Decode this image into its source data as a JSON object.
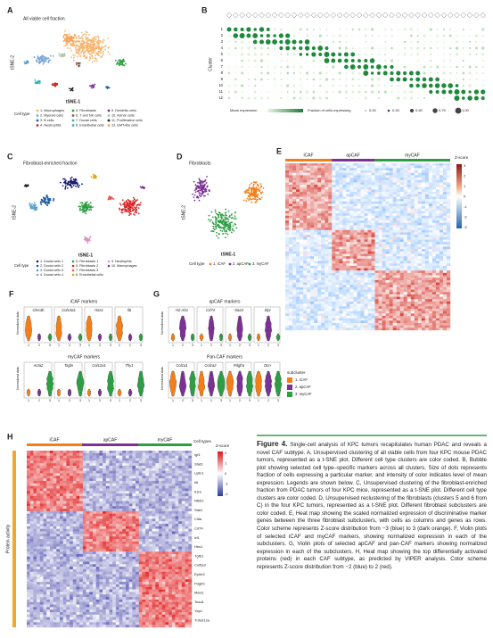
{
  "panels": {
    "A": {
      "letter": "A",
      "title": "All viable cell fraction",
      "x_label": "tSNE-1",
      "y_label": "tSNE-2",
      "legend_title": "Cell type",
      "legend": [
        "1. Macrophages",
        "2. Myeloid cells",
        "3. B cells",
        "4. Neutrophils",
        "5. Fibroblasts",
        "6. T and NK cells",
        "7. Ductal cells",
        "8. Endothelial cells",
        "9. Dendritic cells",
        "10. Acinar cells",
        "11. Proliferative cells",
        "12. EMT-like cells"
      ]
    },
    "B": {
      "letter": "B",
      "y_label": "Cluster",
      "rows": [
        "1",
        "2",
        "3",
        "4",
        "5",
        "6",
        "7",
        "8",
        "9",
        "10",
        "11",
        "12"
      ],
      "legend_color": "Mean expression",
      "legend_size": "Fraction of cells expressing",
      "size_labels": [
        "0.00",
        "0.25",
        "0.50",
        "0.75",
        "1.00"
      ]
    },
    "C": {
      "letter": "C",
      "title": "Fibroblast-enriched fraction",
      "x_label": "tSNE-1",
      "y_label": "tSNE-2",
      "legend_title": "Cell type",
      "legend": [
        "1. Ductal cells 1",
        "2. Ductal cells 2",
        "3. Ductal cells 3",
        "4. Ductal cells 4",
        "5. Fibroblasts 1",
        "6. Fibroblasts 2",
        "7. Fibroblasts 3",
        "8. Endothelial cells",
        "9. Neutrophils",
        "10. Macrophages"
      ]
    },
    "D": {
      "letter": "D",
      "title": "Fibroblasts",
      "x_label": "tSNE-1",
      "y_label": "tSNE-2",
      "legend_title": "Cell type",
      "legend": [
        "1. iCAF",
        "2. apCAF",
        "3. myCAF"
      ]
    },
    "E": {
      "letter": "E",
      "groups": [
        "iCAF",
        "apCAF",
        "myCAF"
      ],
      "scale_title": "Z-score",
      "scale_labels": [
        "3",
        "2",
        "1",
        "0",
        "-1",
        "-2",
        "-3"
      ]
    },
    "F": {
      "letter": "F",
      "y_label": "Normalized data",
      "x_labels": [
        "1",
        "2",
        "3"
      ],
      "groups": [
        {
          "title": "iCAF markers",
          "genes": [
            "Clec3b",
            "Col14a1",
            "Has1",
            "Il6"
          ]
        },
        {
          "title": "myCAF markers",
          "genes": [
            "Acta2",
            "Tagln",
            "Col12a1",
            "Thy1"
          ]
        }
      ]
    },
    "G": {
      "letter": "G",
      "y_label": "Normalized data",
      "x_labels": [
        "1",
        "2",
        "3"
      ],
      "groups": [
        {
          "title": "apCAF markers",
          "genes": [
            "H2-Ab1",
            "Cd74",
            "Saa3",
            "Slpi"
          ]
        },
        {
          "title": "Pan-CAF markers",
          "genes": [
            "Col1a1",
            "Col1a2",
            "Pdgfra",
            "Dcn"
          ]
        }
      ],
      "legend_title": "subcluster",
      "legend": [
        "1. iCAF",
        "2. apCAF",
        "3. myCAF"
      ]
    },
    "H": {
      "letter": "H",
      "groups": [
        "iCAF",
        "apCAF",
        "myCAF"
      ],
      "side_label": "Protein activity",
      "cell_types": "Cell types",
      "scale_title": "Z-score",
      "scale_labels": [
        "2",
        "1",
        "0",
        "-1",
        "-2"
      ],
      "genes": [
        "Igf1",
        "Stat3",
        "Ly6c1",
        "Il6",
        "Il1ra",
        "Nfkb2",
        "Stat1",
        "Ciita",
        "Cd74",
        "Irf1",
        "Hes1",
        "Tgfb1",
        "Col5a3",
        "Ephb3",
        "Pdgfrb",
        "Meis1",
        "Tead1",
        "Yap1",
        "Tnfrsf12a"
      ]
    }
  },
  "caption": {
    "label": "Figure 4.",
    "text": "Single-cell analysis of KPC tumors recapitulates human PDAC and reveals a novel CAF subtype. A, Unsupervised clustering of all viable cells from four KPC mouse PDAC tumors, represented as a t-SNE plot. Different cell type clusters are color coded. B, Bubble plot showing selected cell type–specific markers across all clusters. Size of dots represents fraction of cells expressing a particular marker, and intensity of color indicates level of mean expression. Legends are shown below. C, Unsupervised clustering of the fibroblast-enriched fraction from PDAC tumors of four KPC mice, represented as a t-SNE plot. Different cell type clusters are color coded. D, Unsupervised reclustering of the fibroblasts (clusters 5 and 6 from C) in the four KPC tumors, represented as a t-SNE plot. Different fibroblast subclusters are color coded. E, Heat map showing the scaled normalized expression of discriminative marker genes between the three fibroblast subclusters, with cells as columns and genes as rows. Color scheme represents Z-score distribution from −3 (blue) to 3 (dark orange). F, Violin plots of selected iCAF and myCAF markers, showing normalized expression in each of the subclusters. G, Violin plots of selected apCAF and pan-CAF markers showing normalized expression in each of the subclusters. H, Heat map showing the top differentially activated proteins (red) in each CAF subtype, as predicted by VIPER analysis. Color scheme represents Z-score distribution from −2 (blue) to 2 (red)."
  }
}
